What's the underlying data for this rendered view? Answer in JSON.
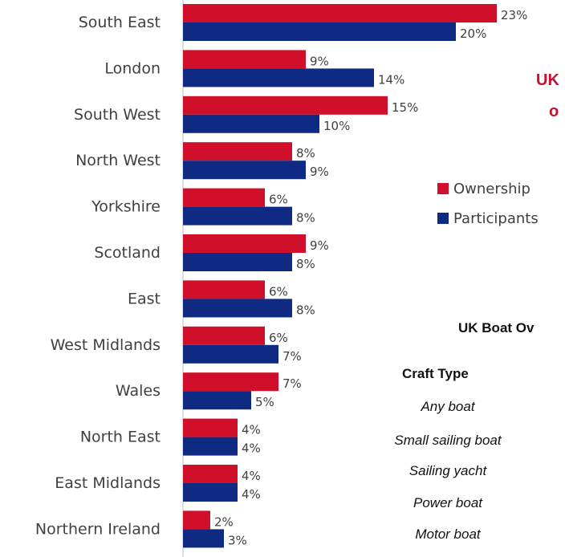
{
  "chart_data": {
    "type": "bar",
    "orientation": "horizontal",
    "categories": [
      "South East",
      "London",
      "South West",
      "North West",
      "Yorkshire",
      "Scotland",
      "East",
      "West Midlands",
      "Wales",
      "North East",
      "East Midlands",
      "Northern Ireland"
    ],
    "series": [
      {
        "name": "Ownership",
        "color": "#D0102A",
        "values": [
          23,
          9,
          15,
          8,
          6,
          9,
          6,
          6,
          7,
          4,
          4,
          2
        ],
        "labels": [
          "23%",
          "9%",
          "15%",
          "8%",
          "6%",
          "9%",
          "6%",
          "6%",
          "7%",
          "4%",
          "4%",
          "2%"
        ]
      },
      {
        "name": "Participants",
        "color": "#0E2A82",
        "values": [
          20,
          14,
          10,
          9,
          8,
          8,
          8,
          7,
          5,
          4,
          4,
          3
        ],
        "labels": [
          "20%",
          "14%",
          "10%",
          "9%",
          "8%",
          "8%",
          "8%",
          "7%",
          "5%",
          "4%",
          "4%",
          "3%"
        ]
      }
    ],
    "unit": "%",
    "legend": "right"
  },
  "side_title": {
    "line1": "UK",
    "line2": "o"
  },
  "table": {
    "title": "UK Boat Ov",
    "column_header": "Craft Type",
    "rows": [
      "Any boat",
      "Small sailing boat",
      "Sailing yacht",
      "Power boat",
      "Motor boat"
    ]
  }
}
